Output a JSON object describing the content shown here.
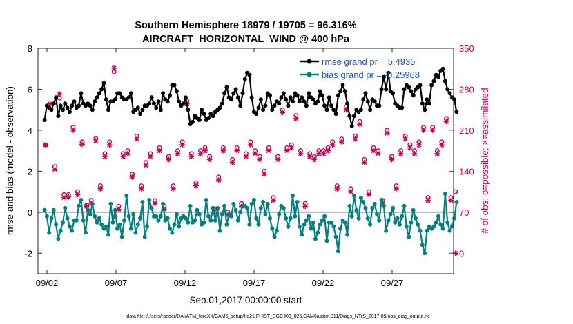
{
  "chart_data": {
    "type": "line",
    "title_line1": "Southern Hemisphere 18979 / 19705 = 96.316%",
    "title_line2": "AIRCRAFT_HORIZONTAL_WIND @ 400 hPa",
    "ylabel_left": "rmse and bias (model - observation)",
    "ylabel_right": "# of obs: o=possible; ×=assimilated",
    "xlabel": "Sep.01,2017 00:00:00 start",
    "footer": "data file: /Users/raeder/DAI/ATM_forcXX/CAM6_setup/f.e21.FHIST_BGC.f09_025.CAM6assim.011/Diags_NTrS_2017-09/obs_diag_output.nc",
    "ylim_left": [
      -3,
      8
    ],
    "yticks_left": [
      -2,
      0,
      2,
      4,
      6,
      8
    ],
    "ylim_right": [
      -35,
      350
    ],
    "yticks_right": [
      0,
      70,
      140,
      210,
      280,
      350
    ],
    "xlim_days": [
      0.6,
      30.7
    ],
    "xticks": [
      {
        "day": 1.25,
        "label": "09/02"
      },
      {
        "day": 6.25,
        "label": "09/07"
      },
      {
        "day": 11.25,
        "label": "09/12"
      },
      {
        "day": 16.25,
        "label": "09/17"
      },
      {
        "day": 21.25,
        "label": "09/22"
      },
      {
        "day": 26.25,
        "label": "09/27"
      }
    ],
    "legend": [
      {
        "label": "rmse grand pr = 5.4935",
        "color": "#000000"
      },
      {
        "label": "bias grand pr = -0.25968",
        "color": "#008080"
      }
    ],
    "series": [
      {
        "name": "rmse",
        "axis": "left",
        "color": "#000000",
        "values": [
          4.5,
          5.2,
          5.1,
          5.0,
          5.3,
          5.6,
          4.7,
          5.2,
          5.0,
          5.3,
          5.1,
          4.9,
          5.2,
          5.4,
          5.1,
          5.2,
          5.8,
          5.3,
          5.2,
          5.3,
          5.2,
          5.0,
          5.4,
          5.6,
          5.8,
          6.0,
          6.3,
          5.5,
          5.0,
          5.4,
          5.4,
          5.5,
          5.8,
          5.8,
          5.6,
          5.5,
          5.5,
          5.6,
          5.8,
          4.9,
          5.0,
          5.1,
          4.8,
          5.0,
          5.2,
          5.2,
          5.3,
          5.6,
          5.3,
          5.1,
          5.4,
          5.0,
          5.8,
          5.5,
          5.4,
          5.7,
          6.2,
          6.2,
          5.9,
          5.4,
          5.2,
          5.3,
          5.6,
          5.0,
          4.3,
          4.4,
          4.7,
          4.6,
          4.5,
          5.0,
          4.8,
          4.5,
          4.6,
          4.8,
          4.7,
          4.9,
          5.0,
          5.1,
          5.3,
          5.8,
          6.1,
          5.6,
          5.5,
          5.8,
          6.0,
          5.6,
          5.2,
          5.8,
          6.5,
          6.8,
          6.7,
          5.6,
          4.9,
          4.8,
          5.1,
          5.5,
          5.0,
          5.2,
          5.8,
          5.7,
          5.0,
          5.2,
          5.4,
          5.3,
          5.6,
          5.8,
          5.5,
          5.2,
          5.6,
          5.4,
          5.8,
          5.7,
          5.4,
          5.6,
          5.4,
          5.2,
          5.8,
          5.6,
          5.5,
          5.3,
          5.4,
          5.9,
          5.7,
          5.2,
          5.0,
          5.6,
          5.2,
          5.0,
          4.8,
          5.7,
          5.9,
          6.2,
          5.9,
          5.3,
          4.7,
          4.2,
          4.7,
          5.0,
          4.9,
          5.0,
          5.5,
          5.8,
          5.4,
          5.0,
          5.5,
          5.4,
          5.2,
          5.2,
          6.0,
          6.6,
          6.0,
          6.8,
          5.9,
          5.8,
          5.3,
          5.2,
          5.1,
          5.1,
          6.0,
          6.2,
          6.1,
          5.9,
          5.7,
          6.0,
          6.1,
          6.2,
          5.3,
          5.0,
          5.5,
          5.3,
          6.2,
          6.4,
          6.7,
          6.6,
          6.9,
          7.0,
          6.4,
          6.0,
          5.8,
          5.6,
          5.5,
          4.9
        ]
      },
      {
        "name": "bias",
        "axis": "left",
        "color": "#008080",
        "values": [
          0.1,
          -0.2,
          -1.0,
          -0.3,
          0.1,
          -0.6,
          -1.3,
          -0.9,
          -0.5,
          0.2,
          -0.3,
          -0.7,
          -0.9,
          -0.4,
          -0.4,
          0.3,
          0.6,
          -0.4,
          -1.0,
          0.1,
          -0.1,
          0.4,
          -0.2,
          -0.5,
          -0.3,
          -0.6,
          -0.8,
          -0.7,
          -1.1,
          0.4,
          -0.5,
          0.1,
          -0.8,
          -0.6,
          -1.2,
          -0.4,
          0.8,
          -0.2,
          -0.8,
          -0.1,
          -1.0,
          -0.6,
          -0.3,
          0.5,
          -1.2,
          -0.7,
          0.6,
          0.2,
          -0.2,
          -0.2,
          -0.4,
          -0.2,
          0.4,
          -0.4,
          -0.3,
          -0.8,
          -1.0,
          -0.6,
          -0.1,
          -0.7,
          -0.3,
          -0.2,
          -0.3,
          -0.5,
          0.3,
          -0.5,
          -0.4,
          0.1,
          -0.1,
          -0.6,
          -0.5,
          0.6,
          -0.2,
          -0.4,
          0.2,
          -0.4,
          0.2,
          -0.9,
          -0.1,
          0.3,
          -0.6,
          -0.1,
          -0.2,
          0.4,
          0.1,
          -0.4,
          0.0,
          0.3,
          0.3,
          0.2,
          -0.6,
          0.4,
          0.6,
          -0.3,
          -0.6,
          0.2,
          0.5,
          -0.1,
          0.4,
          -0.3,
          -0.8,
          -1.2,
          -0.9,
          -0.1,
          0.3,
          0.2,
          -0.3,
          -0.7,
          -0.3,
          0.8,
          -0.2,
          0.5,
          -0.7,
          -1.1,
          -0.6,
          -0.4,
          -0.2,
          -0.8,
          -0.5,
          -1.3,
          -1.0,
          -0.6,
          -0.4,
          -0.2,
          -1.4,
          -0.5,
          -0.5,
          -0.7,
          -1.2,
          -1.9,
          -0.8,
          -0.4,
          -0.5,
          -1.1,
          0.3,
          -0.2,
          0.8,
          0.1,
          -0.3,
          0.7,
          0.5,
          0.2,
          -0.3,
          -0.6,
          0.2,
          0.4,
          -0.1,
          -0.4,
          0.6,
          0.3,
          -0.9,
          -0.4,
          -0.1,
          0.2,
          -0.5,
          -0.3,
          -0.6,
          -0.2,
          0.3,
          -0.7,
          -1.2,
          -0.5,
          0.1,
          -0.3,
          -0.6,
          -0.9,
          -1.6,
          -2.0,
          -0.9,
          -0.7,
          -0.8,
          -0.7,
          -0.5,
          -0.2,
          -0.6,
          -0.8,
          0.9,
          -0.5,
          -0.9,
          -0.7,
          -0.3,
          0.5
        ]
      },
      {
        "name": "obs possible",
        "axis": "right",
        "marker": "o",
        "color": "#cc0055",
        "values": [
          185,
          250,
          148,
          265,
          100,
          100,
          215,
          105,
          190,
          82,
          90,
          196,
          115,
          170,
          190,
          310,
          80,
          170,
          175,
          135,
          200,
          115,
          155,
          170,
          90,
          180,
          80,
          165,
          115,
          175,
          190,
          260,
          170,
          120,
          175,
          180,
          165,
          75,
          130,
          180,
          70,
          160,
          180,
          85,
          170,
          190,
          175,
          165,
          140,
          180,
          95,
          165,
          245,
          180,
          185,
          235,
          175,
          85,
          170,
          165,
          175,
          175,
          180,
          190,
          115,
          195,
          250,
          110,
          200,
          225,
          160,
          105,
          180,
          175,
          90,
          210,
          165,
          115,
          175,
          200,
          185,
          175,
          190,
          215,
          95,
          215,
          175,
          190,
          230,
          95,
          105
        ]
      },
      {
        "name": "obs assimilated",
        "axis": "right",
        "marker": "x",
        "color": "#cc0055",
        "values": [
          185,
          255,
          143,
          272,
          95,
          96,
          210,
          100,
          186,
          80,
          85,
          192,
          110,
          165,
          185,
          316,
          75,
          165,
          170,
          130,
          195,
          110,
          150,
          165,
          85,
          175,
          75,
          160,
          110,
          170,
          185,
          255,
          165,
          115,
          170,
          175,
          160,
          70,
          125,
          175,
          65,
          155,
          175,
          80,
          165,
          185,
          170,
          160,
          135,
          175,
          90,
          160,
          240,
          175,
          180,
          230,
          170,
          80,
          165,
          160,
          170,
          170,
          175,
          185,
          110,
          190,
          245,
          105,
          195,
          220,
          155,
          100,
          175,
          170,
          85,
          205,
          160,
          110,
          170,
          195,
          180,
          170,
          185,
          210,
          90,
          210,
          170,
          185,
          225,
          90,
          0
        ]
      }
    ]
  }
}
